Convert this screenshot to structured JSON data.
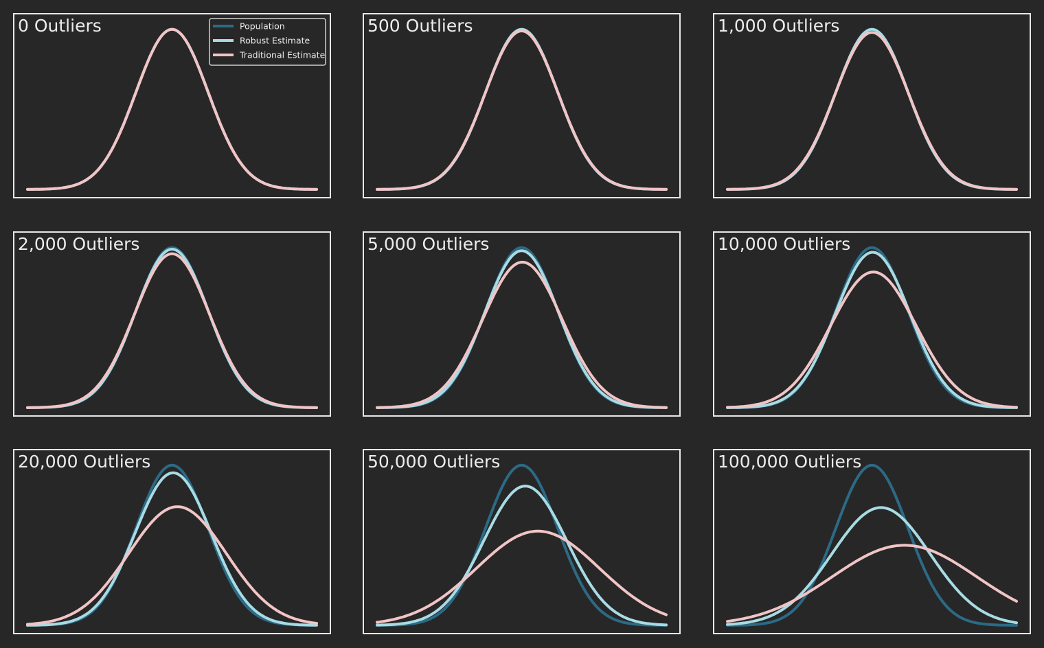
{
  "chart_data": {
    "type": "line",
    "x_range": [
      -4,
      4
    ],
    "ylim": [
      0,
      1.05
    ],
    "grid": false,
    "legend": {
      "placement": "top-right of first panel",
      "entries": [
        {
          "name": "Population",
          "color": "#2c6a86"
        },
        {
          "name": "Robust Estimate",
          "color": "#a8dbe4"
        },
        {
          "name": "Traditional Estimate",
          "color": "#f1c4c6"
        }
      ]
    },
    "panels": [
      {
        "title": "0 Outliers",
        "series": [
          {
            "name": "Population",
            "mean": 0,
            "sd": 1
          },
          {
            "name": "Robust Estimate",
            "mean": 0,
            "sd": 1
          },
          {
            "name": "Traditional Estimate",
            "mean": 0,
            "sd": 1
          }
        ]
      },
      {
        "title": "500 Outliers",
        "series": [
          {
            "name": "Population",
            "mean": 0,
            "sd": 1
          },
          {
            "name": "Robust Estimate",
            "mean": 0.0,
            "sd": 1.0
          },
          {
            "name": "Traditional Estimate",
            "mean": 0.0,
            "sd": 1.01
          }
        ]
      },
      {
        "title": "1,000 Outliers",
        "series": [
          {
            "name": "Population",
            "mean": 0,
            "sd": 1
          },
          {
            "name": "Robust Estimate",
            "mean": 0.0,
            "sd": 1.0
          },
          {
            "name": "Traditional Estimate",
            "mean": 0.0,
            "sd": 1.02
          }
        ]
      },
      {
        "title": "2,000 Outliers",
        "series": [
          {
            "name": "Population",
            "mean": 0,
            "sd": 1
          },
          {
            "name": "Robust Estimate",
            "mean": 0.0,
            "sd": 1.01
          },
          {
            "name": "Traditional Estimate",
            "mean": 0.0,
            "sd": 1.04
          }
        ]
      },
      {
        "title": "5,000 Outliers",
        "series": [
          {
            "name": "Population",
            "mean": 0,
            "sd": 1
          },
          {
            "name": "Robust Estimate",
            "mean": 0.0,
            "sd": 1.02
          },
          {
            "name": "Traditional Estimate",
            "mean": 0.02,
            "sd": 1.1
          }
        ]
      },
      {
        "title": "10,000 Outliers",
        "series": [
          {
            "name": "Population",
            "mean": 0,
            "sd": 1
          },
          {
            "name": "Robust Estimate",
            "mean": 0.02,
            "sd": 1.03
          },
          {
            "name": "Traditional Estimate",
            "mean": 0.04,
            "sd": 1.18
          }
        ]
      },
      {
        "title": "20,000 Outliers",
        "series": [
          {
            "name": "Population",
            "mean": 0,
            "sd": 1
          },
          {
            "name": "Robust Estimate",
            "mean": 0.03,
            "sd": 1.05
          },
          {
            "name": "Traditional Estimate",
            "mean": 0.15,
            "sd": 1.35
          }
        ]
      },
      {
        "title": "50,000 Outliers",
        "series": [
          {
            "name": "Population",
            "mean": 0,
            "sd": 1
          },
          {
            "name": "Robust Estimate",
            "mean": 0.1,
            "sd": 1.15
          },
          {
            "name": "Traditional Estimate",
            "mean": 0.45,
            "sd": 1.7
          }
        ]
      },
      {
        "title": "100,000 Outliers",
        "series": [
          {
            "name": "Population",
            "mean": 0,
            "sd": 1
          },
          {
            "name": "Robust Estimate",
            "mean": 0.25,
            "sd": 1.36
          },
          {
            "name": "Traditional Estimate",
            "mean": 0.9,
            "sd": 2.0
          }
        ]
      }
    ]
  }
}
